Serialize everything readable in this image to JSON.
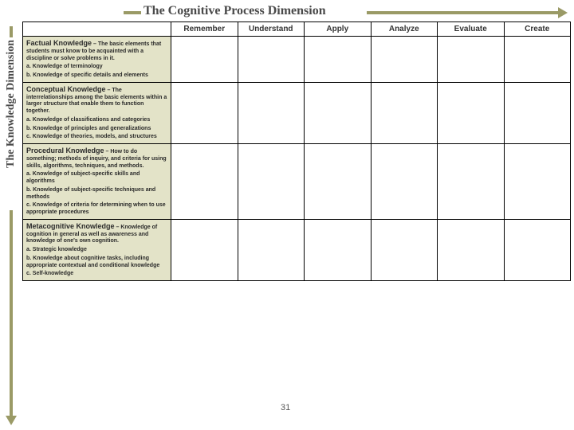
{
  "page_number": "31",
  "axes": {
    "horizontal": "The Cognitive Process Dimension",
    "vertical": "The Knowledge Dimension"
  },
  "colors": {
    "arrow": "#9a9a66",
    "rowhead_bg": "#e3e3c8",
    "border": "#000000",
    "text": "#333333"
  },
  "columns": [
    {
      "label": "Remember"
    },
    {
      "label": "Understand"
    },
    {
      "label": "Apply"
    },
    {
      "label": "Analyze"
    },
    {
      "label": "Evaluate"
    },
    {
      "label": "Create"
    }
  ],
  "rows": [
    {
      "title": "Factual Knowledge",
      "dash": " – ",
      "desc": "The basic elements that students must know to be acquainted with a discipline or solve problems in it.",
      "sub1": "a. Knowledge of terminology",
      "sub2": "b. Knowledge of specific details and elements",
      "sub3": ""
    },
    {
      "title": "Conceptual Knowledge",
      "dash": " – ",
      "desc": "The interrelationships among the basic elements within a larger structure that enable them to function together.",
      "sub1": "a. Knowledge of classifications and categories",
      "sub2": "b. Knowledge of principles and generalizations",
      "sub3": "c. Knowledge of theories, models, and structures"
    },
    {
      "title": "Procedural Knowledge",
      "dash": " – ",
      "desc": "How to do something; methods of inquiry, and criteria for using skills, algorithms, techniques, and methods.",
      "sub1": "a. Knowledge of subject-specific skills and algorithms",
      "sub2": "b. Knowledge of subject-specific techniques and methods",
      "sub3": "c. Knowledge of criteria for determining when to use appropriate procedures"
    },
    {
      "title": "Metacognitive Knowledge",
      "dash": " – ",
      "desc": "Knowledge of cognition in general as well as awareness and knowledge of one's own cognition.",
      "sub1": "a. Strategic knowledge",
      "sub2": "b. Knowledge about cognitive tasks, including appropriate contextual and conditional knowledge",
      "sub3": "c. Self-knowledge"
    }
  ]
}
